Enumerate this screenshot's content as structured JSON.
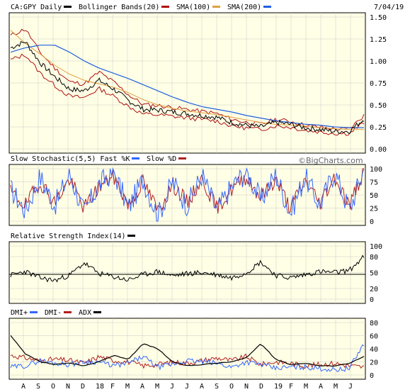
{
  "date_label": "7/04/19",
  "watermark": "©BigCharts.com",
  "colors": {
    "panel_bg": "#ffffe6",
    "grid": "#c8c8c8",
    "price": "#000000",
    "bollinger": "#b01010",
    "sma100": "#e0a040",
    "sma200": "#2060e0",
    "fastk": "#3366ff",
    "slowd": "#b02020",
    "rsi": "#000000",
    "dmi_plus": "#3366ff",
    "dmi_minus": "#b02020",
    "adx": "#000000"
  },
  "panels": {
    "price": {
      "legend": [
        {
          "text": "CA:GPY Daily",
          "color": "#000000"
        },
        {
          "text": "Bollinger Bands(20)",
          "color": "#b01010"
        },
        {
          "text": "SMA(100)",
          "color": "#e0a040"
        },
        {
          "text": "SMA(200)",
          "color": "#2060e0"
        }
      ],
      "yticks": [
        "1.50",
        "1.25",
        "1.00",
        "0.75",
        "0.50",
        "0.25",
        "0.00"
      ]
    },
    "stoch": {
      "legend": [
        {
          "text": "Slow Stochastic(5,5) Fast %K",
          "color": "#3366ff"
        },
        {
          "text": "Slow %D",
          "color": "#b02020"
        }
      ],
      "yticks": [
        "100",
        "75",
        "50",
        "25",
        "0"
      ]
    },
    "rsi": {
      "legend": [
        {
          "text": "Relative Strength Index(14)",
          "color": "#000000"
        }
      ],
      "yticks": [
        "100",
        "80",
        "50",
        "20",
        "0"
      ]
    },
    "dmi": {
      "legend": [
        {
          "text": "DMI+",
          "color": "#3366ff"
        },
        {
          "text": "DMI-",
          "color": "#b02020"
        },
        {
          "text": "ADX",
          "color": "#000000"
        }
      ],
      "yticks": [
        "80",
        "60",
        "40",
        "20",
        "0"
      ]
    }
  },
  "x_labels": [
    "A",
    "S",
    "O",
    "N",
    "D",
    "18",
    "F",
    "M",
    "A",
    "M",
    "J",
    "J",
    "A",
    "S",
    "O",
    "N",
    "D",
    "19",
    "F",
    "M",
    "A",
    "M",
    "J"
  ],
  "chart_data": [
    {
      "type": "line",
      "title": "CA:GPY Daily",
      "x": [
        "2017-07",
        "2017-08",
        "2017-09",
        "2017-10",
        "2017-11",
        "2017-12",
        "2018-01",
        "2018-02",
        "2018-03",
        "2018-04",
        "2018-05",
        "2018-06",
        "2018-07",
        "2018-08",
        "2018-09",
        "2018-10",
        "2018-11",
        "2018-12",
        "2019-01",
        "2019-02",
        "2019-03",
        "2019-04",
        "2019-05",
        "2019-06",
        "2019-07"
      ],
      "ylim": [
        0,
        1.5
      ],
      "series": [
        {
          "name": "CA:GPY Daily",
          "values": [
            1.15,
            1.22,
            0.98,
            0.82,
            0.68,
            0.66,
            0.78,
            0.68,
            0.55,
            0.45,
            0.44,
            0.42,
            0.4,
            0.38,
            0.36,
            0.3,
            0.27,
            0.25,
            0.3,
            0.28,
            0.24,
            0.22,
            0.2,
            0.2,
            0.34
          ]
        },
        {
          "name": "SMA(100)",
          "values": [
            1.35,
            1.2,
            1.08,
            0.95,
            0.85,
            0.78,
            0.74,
            0.7,
            0.64,
            0.56,
            0.5,
            0.46,
            0.43,
            0.41,
            0.39,
            0.36,
            0.33,
            0.3,
            0.28,
            0.27,
            0.26,
            0.24,
            0.23,
            0.22,
            0.22
          ]
        },
        {
          "name": "SMA(200)",
          "values": [
            1.1,
            1.15,
            1.18,
            1.18,
            1.1,
            1.0,
            0.92,
            0.86,
            0.8,
            0.73,
            0.66,
            0.59,
            0.53,
            0.48,
            0.45,
            0.42,
            0.38,
            0.35,
            0.32,
            0.3,
            0.28,
            0.27,
            0.25,
            0.24,
            0.24
          ]
        }
      ]
    },
    {
      "type": "line",
      "title": "Slow Stochastic(5,5)",
      "ylim": [
        0,
        100
      ],
      "series": [
        {
          "name": "Fast %K",
          "values": [
            60,
            20,
            85,
            30,
            90,
            15,
            70,
            95,
            25,
            80,
            10,
            75,
            30,
            88,
            20,
            65,
            95,
            40,
            90,
            15,
            85,
            30,
            95,
            20,
            100
          ]
        },
        {
          "name": "Slow %D",
          "values": [
            55,
            30,
            75,
            35,
            80,
            25,
            65,
            85,
            30,
            75,
            20,
            70,
            35,
            80,
            25,
            60,
            85,
            45,
            80,
            25,
            78,
            35,
            85,
            30,
            95
          ]
        }
      ]
    },
    {
      "type": "line",
      "title": "Relative Strength Index(14)",
      "ylim": [
        0,
        100
      ],
      "series": [
        {
          "name": "RSI",
          "values": [
            45,
            52,
            40,
            35,
            45,
            68,
            48,
            42,
            36,
            46,
            52,
            44,
            48,
            50,
            46,
            40,
            50,
            70,
            45,
            40,
            46,
            52,
            50,
            54,
            80
          ]
        }
      ]
    },
    {
      "type": "line",
      "title": "DMI",
      "ylim": [
        0,
        80
      ],
      "series": [
        {
          "name": "DMI+",
          "values": [
            12,
            14,
            22,
            18,
            16,
            20,
            20,
            14,
            18,
            28,
            12,
            16,
            22,
            20,
            18,
            12,
            20,
            16,
            10,
            12,
            12,
            10,
            8,
            10,
            48
          ]
        },
        {
          "name": "DMI-",
          "values": [
            30,
            26,
            22,
            24,
            22,
            18,
            28,
            22,
            20,
            14,
            16,
            20,
            18,
            22,
            26,
            22,
            28,
            16,
            20,
            18,
            14,
            16,
            18,
            14,
            12
          ]
        },
        {
          "name": "ADX",
          "values": [
            60,
            32,
            20,
            16,
            18,
            14,
            20,
            30,
            24,
            48,
            40,
            20,
            14,
            16,
            18,
            20,
            26,
            48,
            24,
            16,
            18,
            14,
            14,
            18,
            28
          ]
        }
      ]
    }
  ]
}
